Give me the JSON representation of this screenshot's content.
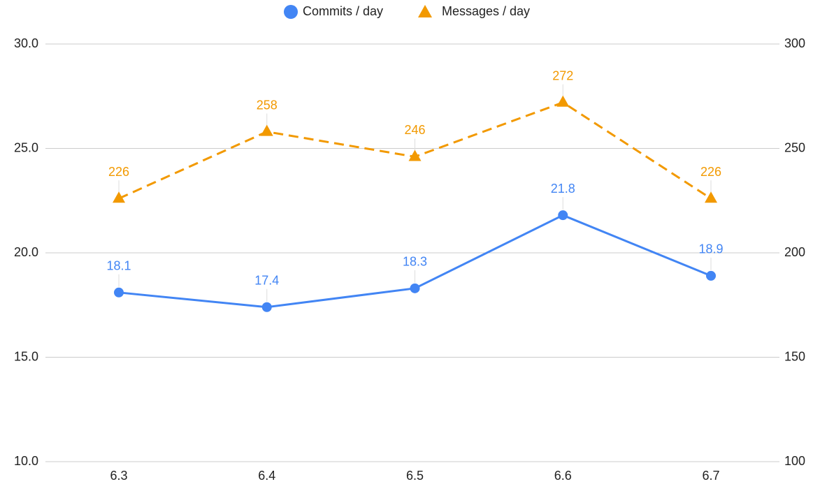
{
  "chart_data": {
    "type": "line",
    "categories": [
      "6.3",
      "6.4",
      "6.5",
      "6.6",
      "6.7"
    ],
    "series": [
      {
        "name": "Commits / day",
        "color": "#4285f4",
        "marker": "circle",
        "line_style": "solid",
        "values": [
          18.1,
          17.4,
          18.3,
          21.8,
          18.9
        ]
      },
      {
        "name": "Messages / day",
        "color": "#f29900",
        "marker": "triangle",
        "line_style": "dashed",
        "axis": "y2",
        "values": [
          226,
          258,
          246,
          272,
          226
        ]
      }
    ],
    "ylim": [
      10,
      30
    ],
    "yticks": [
      {
        "value": 10,
        "label": "10.0"
      },
      {
        "value": 15,
        "label": "15.0"
      },
      {
        "value": 20,
        "label": "20.0"
      },
      {
        "value": 25,
        "label": "25.0"
      },
      {
        "value": 30,
        "label": "30.0"
      }
    ],
    "y2lim": [
      100,
      300
    ],
    "y2ticks": [
      100,
      150,
      200,
      250,
      300
    ],
    "grid": true,
    "legend": "top",
    "data_labels": true
  }
}
